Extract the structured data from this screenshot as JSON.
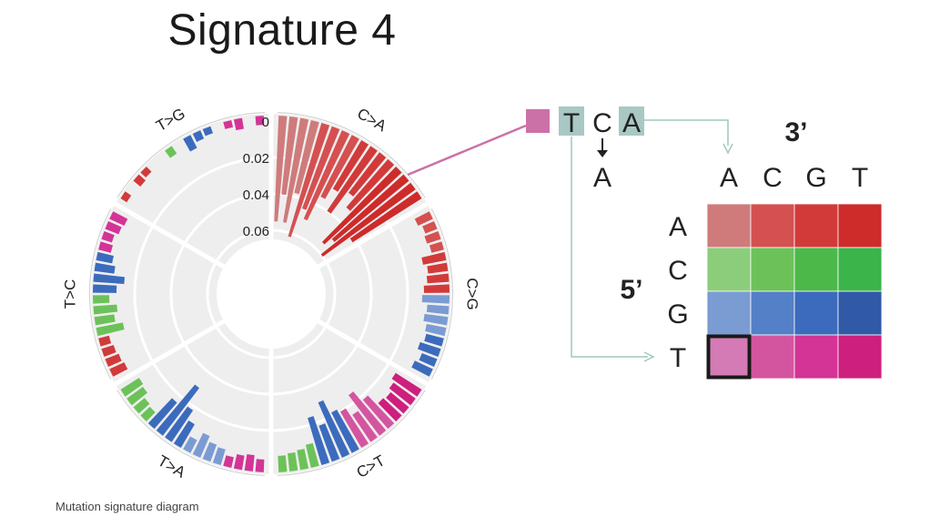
{
  "title": "Signature 4",
  "caption": "Mutation signature diagram",
  "chart_data": {
    "type": "radial-bar",
    "title": "Signature 4",
    "radial_ticks": [
      "0",
      "0.02",
      "0.04",
      "0.06"
    ],
    "tick_values": [
      0,
      0.02,
      0.04,
      0.06
    ],
    "rmax": 0.065,
    "series": [
      {
        "name": "C>A",
        "values": [
          0.055,
          0.04,
          0.055,
          0.038,
          0.062,
          0.045,
          0.05,
          0.035,
          0.028,
          0.04,
          0.025,
          0.032,
          0.055,
          0.05,
          0.06,
          0.042
        ]
      },
      {
        "name": "C>G",
        "values": [
          0.006,
          0.004,
          0.005,
          0.004,
          0.01,
          0.008,
          0.009,
          0.011,
          0.012,
          0.009,
          0.01,
          0.008,
          0.007,
          0.009,
          0.006,
          0.008
        ]
      },
      {
        "name": "C>T",
        "values": [
          0.014,
          0.012,
          0.01,
          0.011,
          0.018,
          0.025,
          0.015,
          0.02,
          0.022,
          0.03,
          0.018,
          0.024,
          0.01,
          0.008,
          0.007,
          0.006
        ]
      },
      {
        "name": "T>A",
        "values": [
          0.004,
          0.006,
          0.005,
          0.003,
          0.006,
          0.007,
          0.01,
          0.005,
          0.012,
          0.018,
          0.03,
          0.016,
          0.004,
          0.005,
          0.008,
          0.009
        ]
      },
      {
        "name": "T>C",
        "values": [
          0.006,
          0.005,
          0.004,
          0.003,
          0.012,
          0.008,
          0.01,
          0.006,
          0.01,
          0.014,
          0.008,
          0.006,
          0.004,
          0.003,
          0.005,
          0.006
        ]
      },
      {
        "name": "T>G",
        "values": [
          0.001,
          0.0,
          0.002,
          0.001,
          0.0,
          0.0,
          0.002,
          0.0,
          0.005,
          0.002,
          0.001,
          0.0,
          0.001,
          0.003,
          0.0,
          0.002
        ]
      }
    ]
  },
  "context_example": {
    "letters": [
      "T",
      "C",
      "A"
    ],
    "mutated_to": "A"
  },
  "matrix": {
    "header_3prime": "3’",
    "header_5prime": "5’",
    "cols": [
      "A",
      "C",
      "G",
      "T"
    ],
    "rows": [
      "A",
      "C",
      "G",
      "T"
    ],
    "colors": [
      [
        "#cf7b7b",
        "#d55050",
        "#d23a3a",
        "#ce2b2b"
      ],
      [
        "#8ccd7c",
        "#6cc259",
        "#4cb84a",
        "#3bb44a"
      ],
      [
        "#7b9bd3",
        "#5480c7",
        "#3c6bbd",
        "#3059a8"
      ],
      [
        "#d47ab5",
        "#d4559f",
        "#d33496",
        "#cd1f7e"
      ]
    ],
    "highlight": {
      "row": 3,
      "col": 0
    }
  },
  "palette": {
    "bg_ring": "#eeeeee",
    "grid": "#ffffff",
    "link": "#cc70a8",
    "arrow": "#9fc7bf",
    "box": "#a9c8c4"
  }
}
